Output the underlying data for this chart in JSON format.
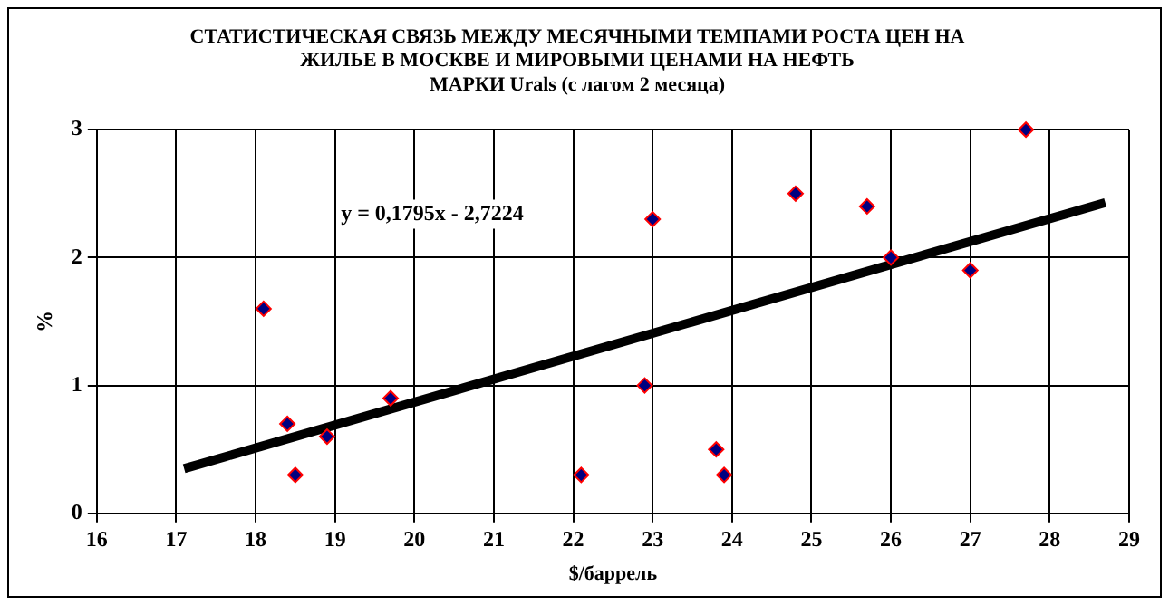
{
  "chart_data": {
    "type": "scatter",
    "title": "СТАТИСТИЧЕСКАЯ СВЯЗЬ МЕЖДУ МЕСЯЧНЫМИ ТЕМПАМИ РОСТА ЦЕН НА\nЖИЛЬЕ В МОСКВЕ И МИРОВЫМИ ЦЕНАМИ НА НЕФТЬ\nМАРКИ Urals (с лагом 2 месяца)",
    "xlabel": "$/баррель",
    "ylabel": "%",
    "series": [
      {
        "type": "scatter",
        "color": "#000080",
        "marker": "diamond",
        "x": [
          18.1,
          18.4,
          18.5,
          18.9,
          19.7,
          22.1,
          22.9,
          23.0,
          23.8,
          23.9,
          24.8,
          25.7,
          26.0,
          27.0,
          27.7
        ],
        "values": [
          1.6,
          0.7,
          0.3,
          0.6,
          0.9,
          0.3,
          1.0,
          2.3,
          0.5,
          0.3,
          2.5,
          2.4,
          2.0,
          1.9,
          3.0
        ]
      },
      {
        "type": "line",
        "color": "#000000",
        "marker": "none",
        "x": [
          17.1,
          28.7
        ],
        "values": [
          0.35,
          2.43
        ]
      }
    ],
    "annotations": [
      "y = 0,1795x - 2,7224"
    ],
    "xlim": [
      16,
      29
    ],
    "xticks": [
      16,
      17,
      18,
      19,
      20,
      21,
      22,
      23,
      24,
      25,
      26,
      27,
      28,
      29
    ],
    "ylim": [
      0,
      3
    ],
    "yticks": [
      0,
      1,
      2,
      3
    ],
    "grid": true,
    "legend": false
  }
}
